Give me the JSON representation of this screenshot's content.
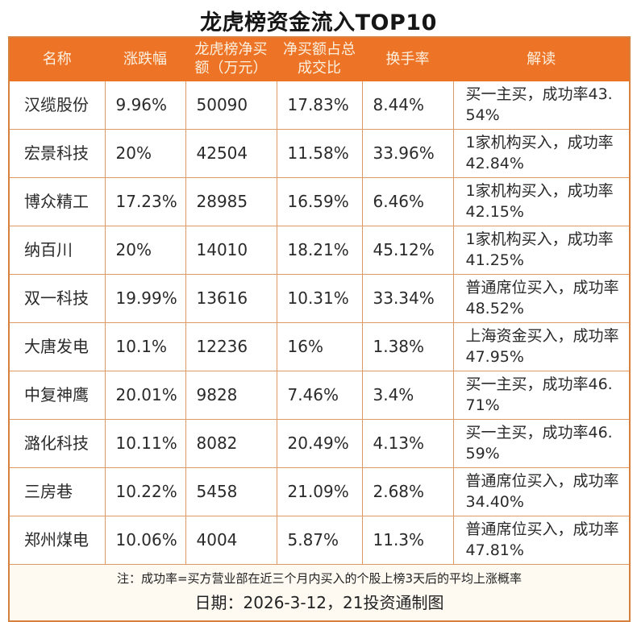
{
  "chart_data": {
    "type": "table",
    "title": "龙虎榜资金流入TOP10",
    "columns": [
      "名称",
      "涨跌幅",
      "龙虎榜净买额（万元）",
      "净买额占总成交比",
      "换手率",
      "解读"
    ],
    "rows": [
      [
        "汉缆股份",
        "9.96%",
        "50090",
        "17.83%",
        "8.44%",
        "买一主买，成功率43.54%"
      ],
      [
        "宏景科技",
        "20%",
        "42504",
        "11.58%",
        "33.96%",
        "1家机构买入，成功率42.84%"
      ],
      [
        "博众精工",
        "17.23%",
        "28985",
        "16.59%",
        "6.46%",
        "1家机构买入，成功率42.15%"
      ],
      [
        "纳百川",
        "20%",
        "14010",
        "18.21%",
        "45.12%",
        "1家机构买入，成功率41.25%"
      ],
      [
        "双一科技",
        "19.99%",
        "13616",
        "10.31%",
        "33.34%",
        "普通席位买入，成功率48.52%"
      ],
      [
        "大唐发电",
        "10.1%",
        "12236",
        "16%",
        "1.38%",
        "上海资金买入，成功率47.95%"
      ],
      [
        "中复神鹰",
        "20.01%",
        "9828",
        "7.46%",
        "3.4%",
        "买一主买，成功率46.71%"
      ],
      [
        "潞化科技",
        "10.11%",
        "8082",
        "20.49%",
        "4.13%",
        "买一主买，成功率46.59%"
      ],
      [
        "三房巷",
        "10.22%",
        "5458",
        "21.09%",
        "2.68%",
        "普通席位买入，成功率34.40%"
      ],
      [
        "郑州煤电",
        "10.06%",
        "4004",
        "5.87%",
        "11.3%",
        "普通席位买入，成功率47.81%"
      ]
    ],
    "note": "注：成功率=买方营业部在近三个月内买入的个股上榜3天后的平均上涨概率",
    "date_line": "日期：2026-3-12，21投资通制图"
  },
  "colors": {
    "header_bg": "#ED7426",
    "header_text": "#FBF0E0",
    "grid_border": "#DE9A64",
    "outer_border": "#D8813F",
    "footer_bg": "#FEFAF2"
  }
}
